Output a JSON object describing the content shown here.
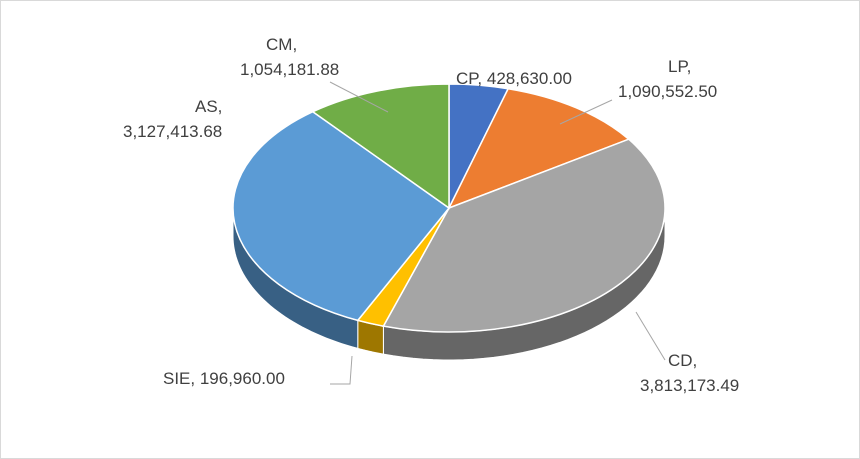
{
  "chart_data": {
    "type": "pie",
    "style": "3d",
    "categories": [
      "CP",
      "LP",
      "CD",
      "SIE",
      "AS",
      "CM"
    ],
    "values": [
      428630.0,
      1090552.5,
      3813173.49,
      196960.0,
      3127413.68,
      1054181.88
    ],
    "value_labels": [
      "CP, 428,630.00",
      "LP, 1,090,552.50",
      "CD, 3,813,173.49",
      "SIE, 196,960.00",
      "AS, 3,127,413.68",
      "CM, 1,054,181.88"
    ],
    "colors": [
      "#4472c4",
      "#ed7d31",
      "#a5a5a5",
      "#ffc000",
      "#5b9bd5",
      "#70ad47"
    ]
  }
}
